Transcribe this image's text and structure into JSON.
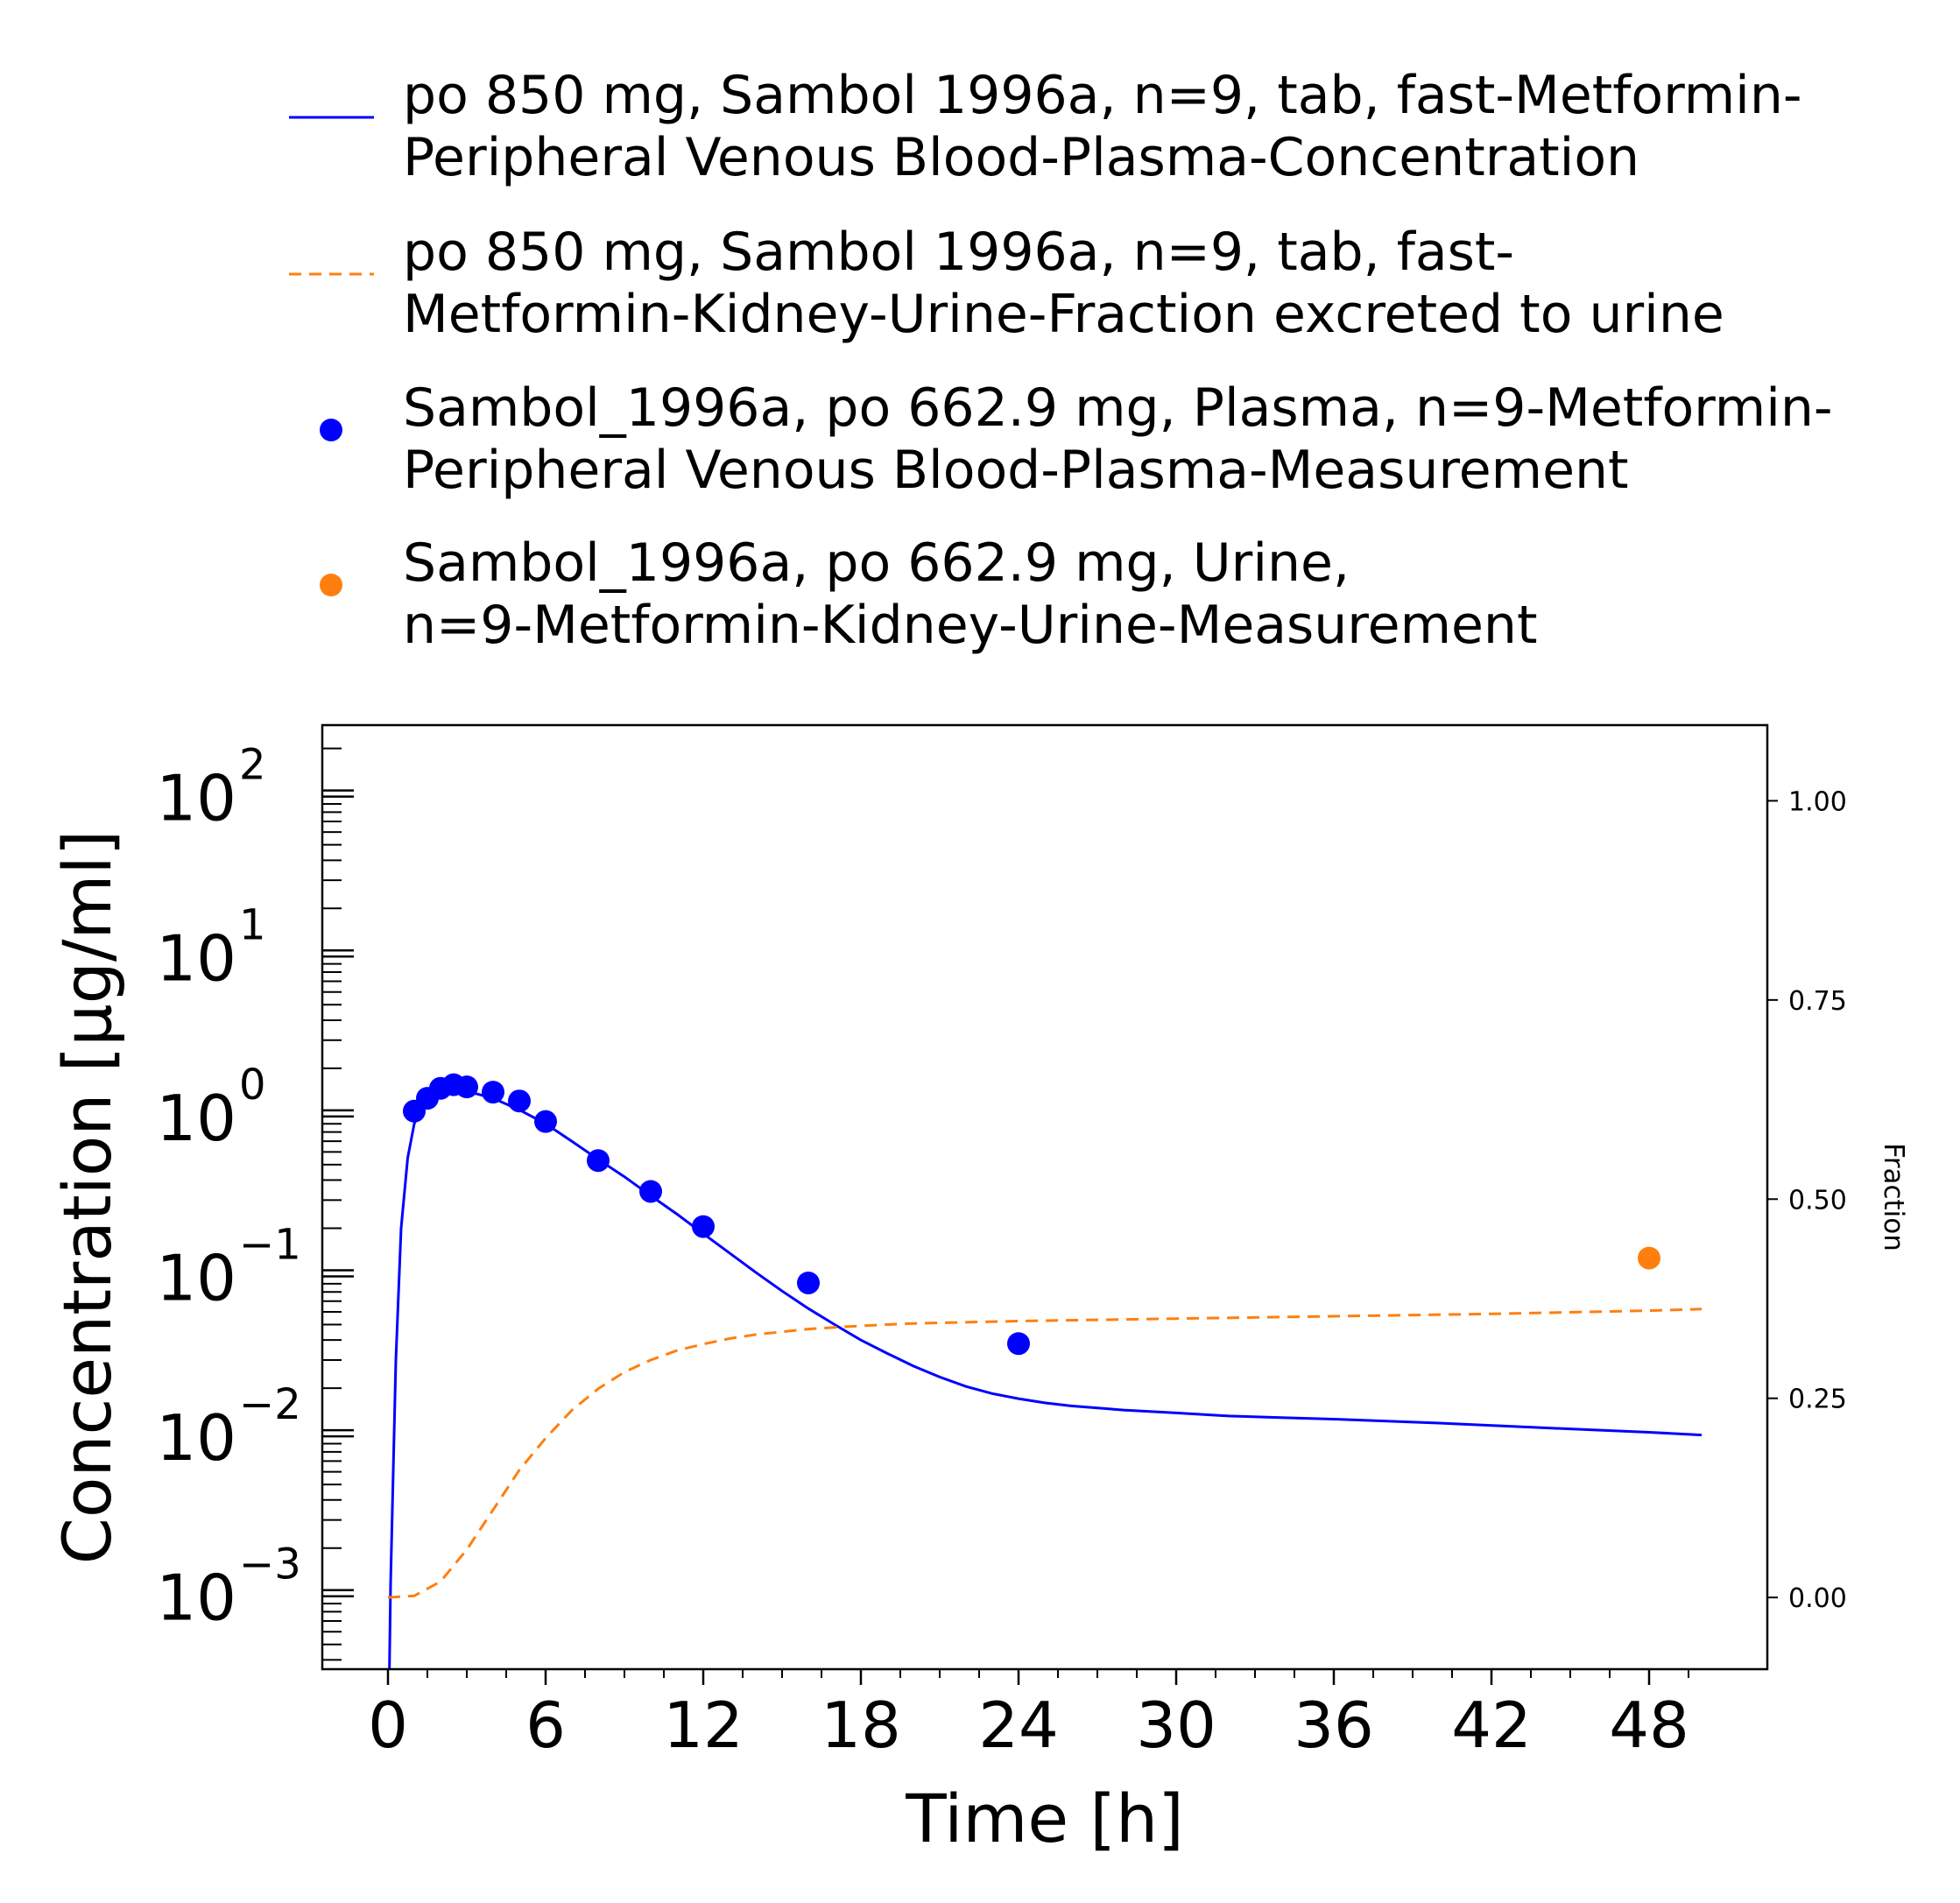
{
  "chart_data": {
    "type": "line",
    "xlabel": "Time [h]",
    "ylabel": "Concentration [µg/ml]",
    "y2label": "Fraction",
    "xlim": [
      -2.5,
      52.5
    ],
    "xticks": [
      0,
      6,
      12,
      18,
      24,
      30,
      36,
      42,
      48
    ],
    "ylim": [
      0.00035,
      280
    ],
    "yscale": "log",
    "yticks": [
      {
        "value": 100,
        "base": "10",
        "exp": "2"
      },
      {
        "value": 10,
        "base": "10",
        "exp": "1"
      },
      {
        "value": 1,
        "base": "10",
        "exp": "0"
      },
      {
        "value": 0.1,
        "base": "10",
        "exp": "−1"
      },
      {
        "value": 0.01,
        "base": "10",
        "exp": "−2"
      },
      {
        "value": 0.001,
        "base": "10",
        "exp": "−3"
      }
    ],
    "y2lim": [
      -0.09,
      1.095
    ],
    "y2ticks": [
      "0.00",
      "0.25",
      "0.50",
      "0.75",
      "1.00"
    ],
    "grid": false,
    "legend_position": "top",
    "series": [
      {
        "name": "po 850 mg, Sambol 1996a, n=9, tab, fast-Metformin-Peripheral Venous Blood-Plasma-Concentration",
        "legend_lines": [
          "po 850 mg, Sambol 1996a, n=9, tab, fast-Metformin-",
          "Peripheral Venous Blood-Plasma-Concentration"
        ],
        "type": "line",
        "style": "solid",
        "axis": "left",
        "color": "#0000ff",
        "x": [
          0.05,
          0.1,
          0.2,
          0.3,
          0.5,
          0.75,
          1,
          1.25,
          1.5,
          2,
          2.5,
          3,
          4,
          5,
          6,
          7,
          8,
          9,
          10,
          11,
          12,
          13,
          14,
          15,
          16,
          17,
          18,
          19,
          20,
          21,
          22,
          23,
          24,
          25,
          26,
          28,
          30,
          32,
          34,
          36,
          40,
          44,
          48,
          50
        ],
        "y": [
          0.0003,
          0.0012,
          0.006,
          0.03,
          0.2,
          0.55,
          0.9,
          1.12,
          1.25,
          1.4,
          1.45,
          1.44,
          1.3,
          1.1,
          0.9,
          0.7,
          0.54,
          0.42,
          0.32,
          0.245,
          0.185,
          0.14,
          0.106,
          0.081,
          0.063,
          0.05,
          0.04,
          0.033,
          0.0275,
          0.0235,
          0.0205,
          0.0185,
          0.0172,
          0.0162,
          0.0155,
          0.0146,
          0.014,
          0.0134,
          0.0131,
          0.0128,
          0.0121,
          0.0113,
          0.0106,
          0.0102
        ]
      },
      {
        "name": "po 850 mg, Sambol 1996a, n=9, tab, fast-Metformin-Kidney-Urine-Fraction excreted to urine",
        "legend_lines": [
          "po 850 mg, Sambol 1996a, n=9, tab, fast-",
          "Metformin-Kidney-Urine-Fraction excreted to urine"
        ],
        "type": "line",
        "style": "dashed",
        "axis": "right",
        "color": "#ff7f0e",
        "x": [
          0,
          1,
          2,
          3,
          4,
          5,
          6,
          7,
          8,
          9,
          10,
          11,
          12,
          13,
          14,
          16,
          18,
          20,
          24,
          30,
          36,
          42,
          48,
          50
        ],
        "y": [
          0.0,
          0.002,
          0.02,
          0.06,
          0.11,
          0.16,
          0.2,
          0.235,
          0.262,
          0.283,
          0.298,
          0.31,
          0.318,
          0.325,
          0.33,
          0.337,
          0.341,
          0.344,
          0.347,
          0.35,
          0.353,
          0.356,
          0.36,
          0.362
        ]
      },
      {
        "name": "Sambol_1996a, po 662.9 mg, Plasma, n=9-Metformin-Peripheral Venous Blood-Plasma-Measurement",
        "legend_lines": [
          "Sambol_1996a, po 662.9 mg, Plasma, n=9-Metformin-",
          "Peripheral Venous Blood-Plasma-Measurement"
        ],
        "type": "scatter",
        "axis": "left",
        "color": "#0000ff",
        "x": [
          1.0,
          1.5,
          2.0,
          2.5,
          3.0,
          4.0,
          5.0,
          6.0,
          8.0,
          10.0,
          12.0,
          16.0,
          24.0
        ],
        "y": [
          1.08,
          1.3,
          1.5,
          1.58,
          1.53,
          1.42,
          1.25,
          0.93,
          0.53,
          0.34,
          0.205,
          0.091,
          0.038
        ]
      },
      {
        "name": "Sambol_1996a, po 662.9 mg, Urine, n=9-Metformin-Kidney-Urine-Measurement",
        "legend_lines": [
          "Sambol_1996a, po 662.9 mg, Urine,",
          "n=9-Metformin-Kidney-Urine-Measurement"
        ],
        "type": "scatter",
        "axis": "right",
        "color": "#ff7f0e",
        "x": [
          48.0
        ],
        "y": [
          0.426
        ]
      }
    ]
  }
}
